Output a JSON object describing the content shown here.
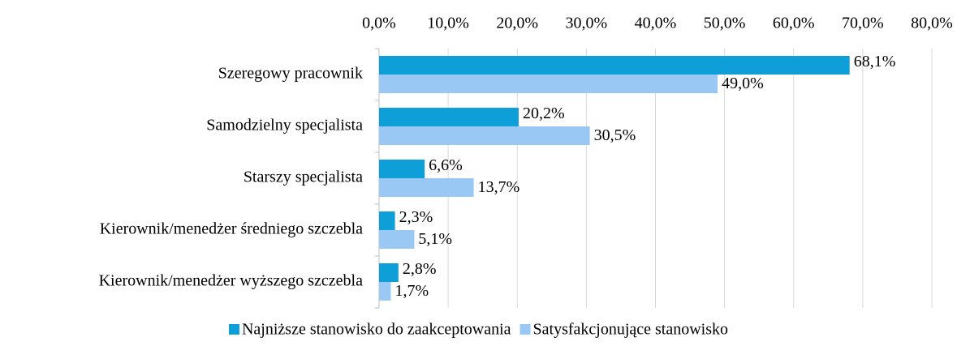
{
  "chart_data": {
    "type": "hbar",
    "categories": [
      "Szeregowy pracownik",
      "Samodzielny specjalista",
      "Starszy specjalista",
      "Kierownik/menedżer średniego szczebla",
      "Kierownik/menedżer wyższego szczebla"
    ],
    "series": [
      {
        "name": "Najniższe stanowisko do zaakceptowania",
        "color": "#0f9fd8",
        "values": [
          68.1,
          20.2,
          6.6,
          2.3,
          2.8
        ],
        "value_labels": [
          "68,1%",
          "20,2%",
          "6,6%",
          "2,3%",
          "2,8%"
        ]
      },
      {
        "name": "Satysfakcjonujące stanowisko",
        "color": "#99c8f5",
        "values": [
          49.0,
          30.5,
          13.7,
          5.1,
          1.7
        ],
        "value_labels": [
          "49,0%",
          "30,5%",
          "13,7%",
          "5,1%",
          "1,7%"
        ]
      }
    ],
    "xlim": [
      0,
      80
    ],
    "xticks": [
      {
        "value": 0,
        "label": "0,0%"
      },
      {
        "value": 10,
        "label": "10,0%"
      },
      {
        "value": 20,
        "label": "20,0%"
      },
      {
        "value": 30,
        "label": "30,0%"
      },
      {
        "value": 40,
        "label": "40,0%"
      },
      {
        "value": 50,
        "label": "50,0%"
      },
      {
        "value": 60,
        "label": "60,0%"
      },
      {
        "value": 70,
        "label": "70,0%"
      },
      {
        "value": 80,
        "label": "80,0%"
      }
    ],
    "grid": true,
    "legend": "bottom"
  }
}
